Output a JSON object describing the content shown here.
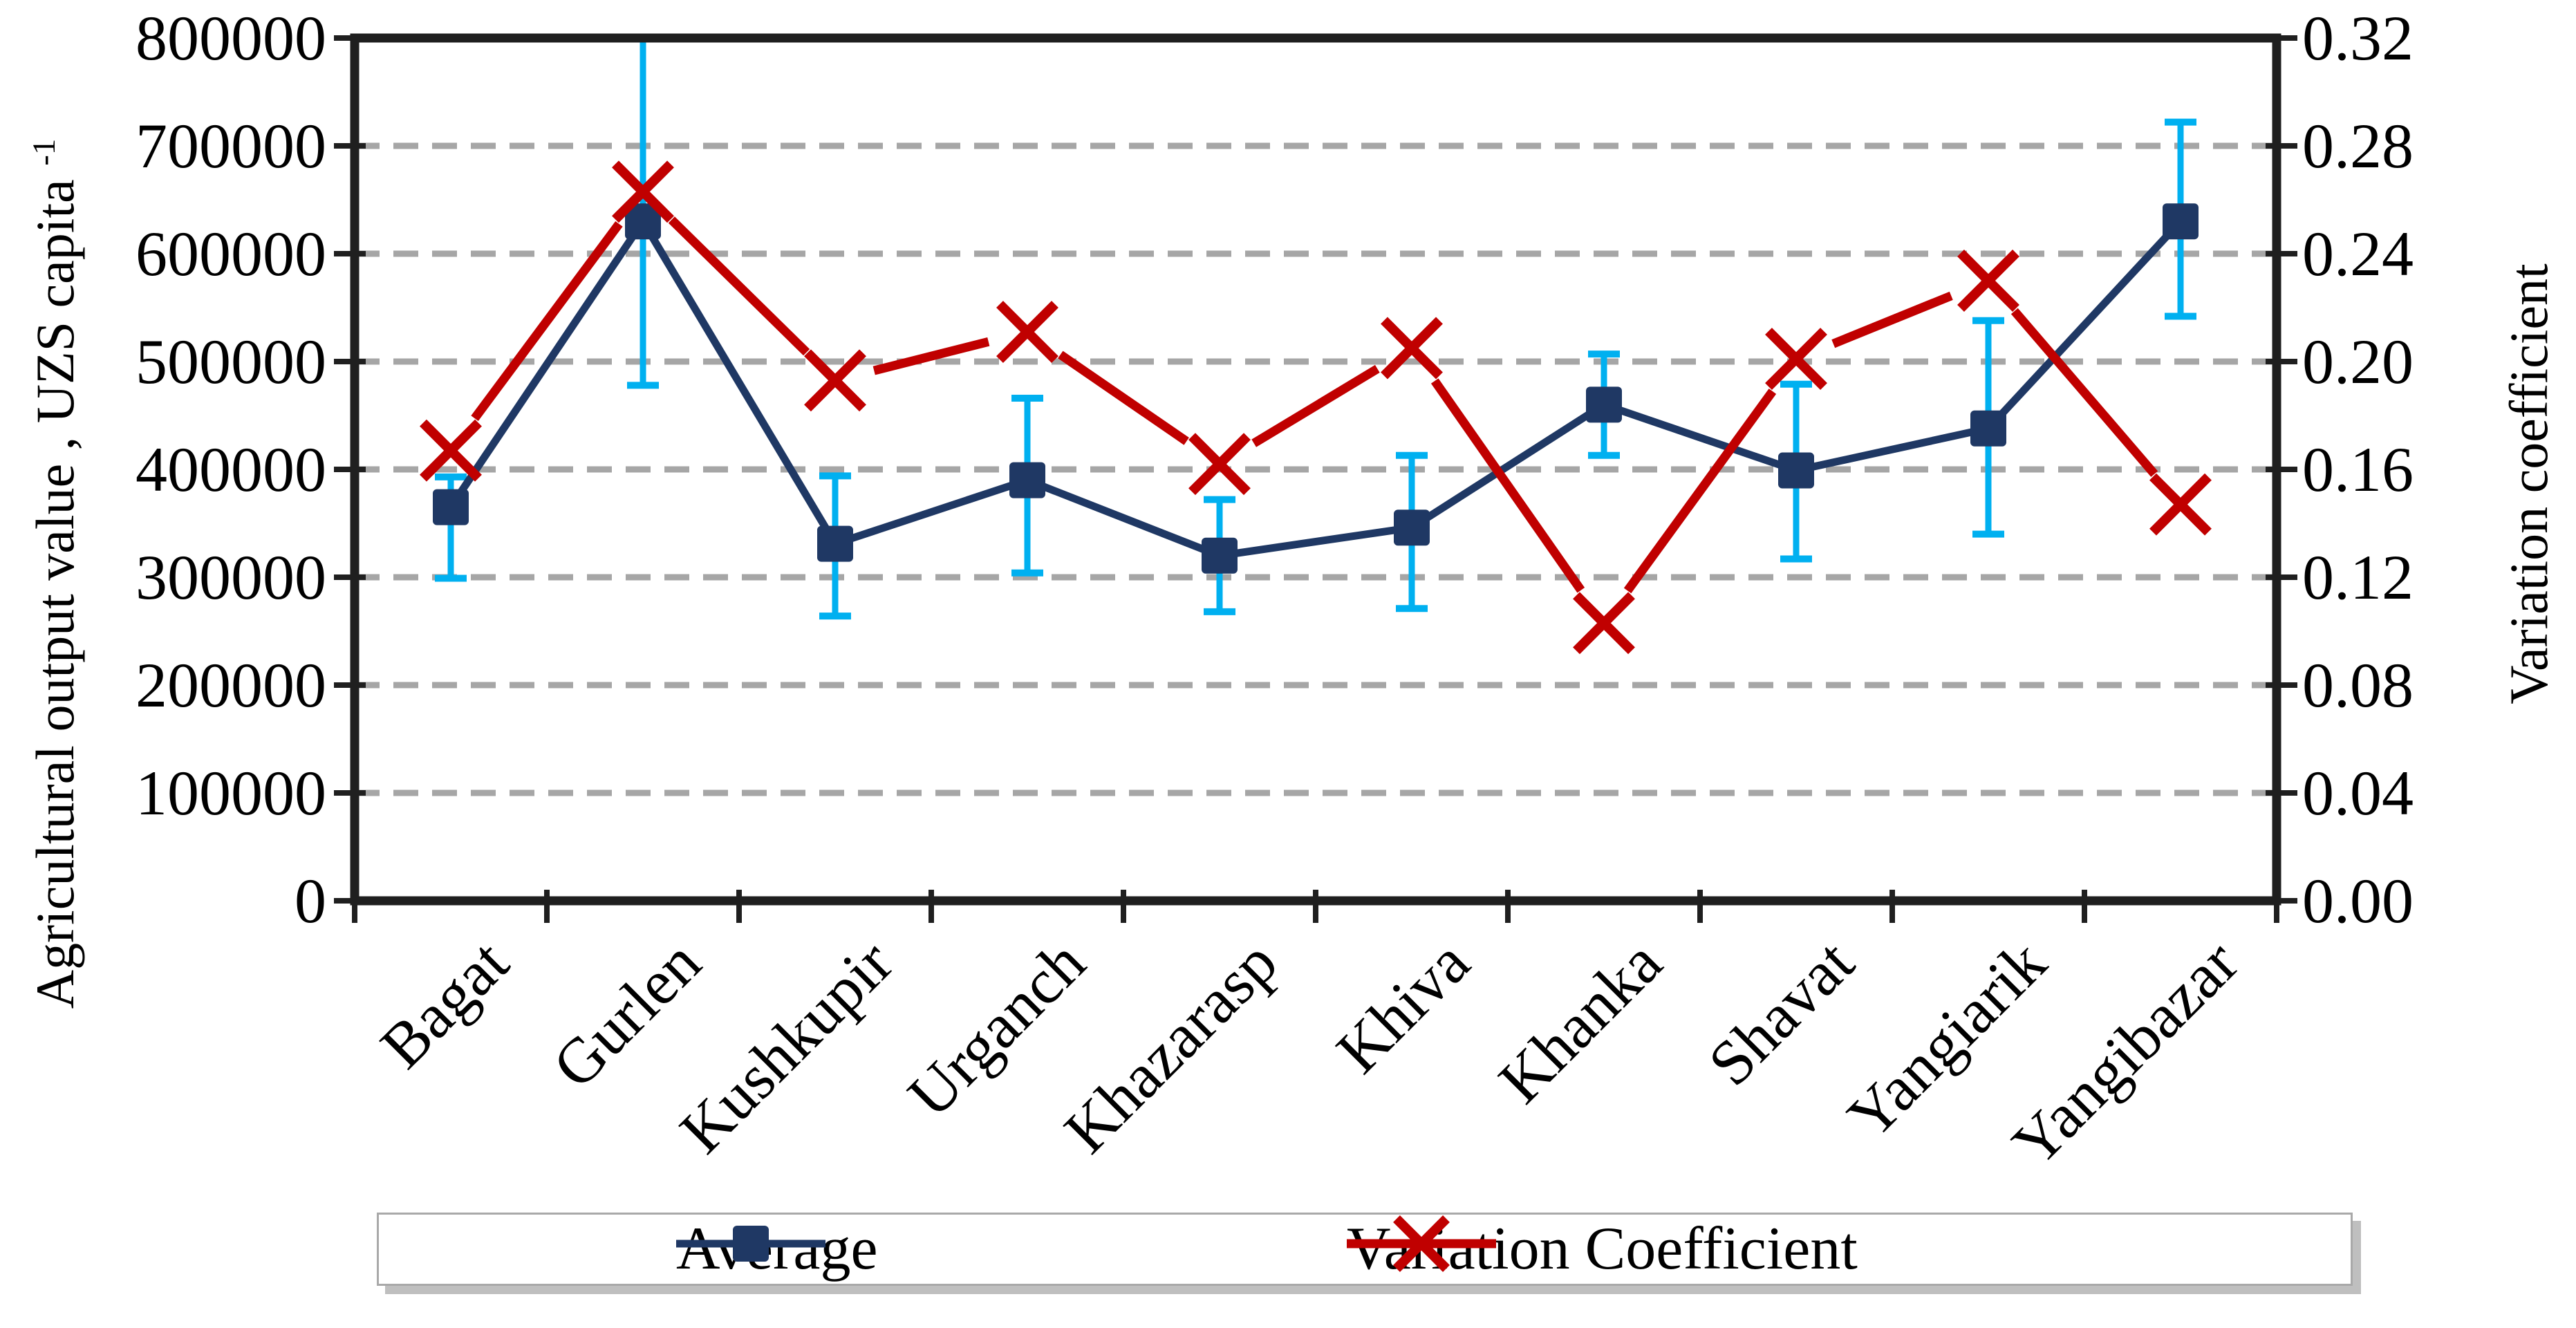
{
  "page": {
    "background": "#FFFFFF"
  },
  "legend": {
    "items": [
      {
        "label": "Average"
      },
      {
        "label": "Variation Coefficient"
      }
    ]
  },
  "chart_data": {
    "type": "line",
    "categories": [
      "Bagat",
      "Gurlen",
      "Kushkupir",
      "Urganch",
      "Khazarasp",
      "Khiva",
      "Khanka",
      "Shavat",
      "Yangiarik",
      "Yangibazar"
    ],
    "series": [
      {
        "name": "Average",
        "axis": "left",
        "marker": "square",
        "color": "#1F3864",
        "values": [
          365000,
          630000,
          331000,
          390000,
          320000,
          346000,
          460000,
          399000,
          438000,
          630000
        ],
        "error_low": [
          299000,
          478000,
          264000,
          304000,
          268000,
          271000,
          413000,
          317000,
          340000,
          542000
        ],
        "error_high": [
          393000,
          800000,
          394000,
          466000,
          372000,
          413000,
          507000,
          479000,
          538000,
          722000
        ]
      },
      {
        "name": "Variation Coefficient",
        "axis": "right",
        "marker": "x",
        "color": "#C00000",
        "values": [
          0.167,
          0.263,
          0.193,
          0.211,
          0.162,
          0.205,
          0.103,
          0.201,
          0.23,
          0.147
        ]
      }
    ],
    "left_axis": {
      "title": "Agricultural output value , UZS capita",
      "title_superscript": "-1",
      "min": 0,
      "max": 800000,
      "step": 100000,
      "tick_labels": [
        "0",
        "100000",
        "200000",
        "300000",
        "400000",
        "500000",
        "600000",
        "700000",
        "800000"
      ]
    },
    "right_axis": {
      "title": "Variation coefficient",
      "min": 0,
      "max": 0.32,
      "step": 0.04,
      "tick_labels": [
        "0.00",
        "0.04",
        "0.08",
        "0.12",
        "0.16",
        "0.20",
        "0.24",
        "0.28",
        "0.32"
      ]
    },
    "styles": {
      "error_bar_color": "#00B0F0",
      "grid_color": "#A6A6A6",
      "axis_color": "#1F1F1F",
      "legend_border_color": "#A9A9A9",
      "legend_shadow_color": "#BFBFBF"
    },
    "layout": {
      "grid": "horizontal-dashed",
      "legend_position": "bottom",
      "x_labels_rotation_deg": -45
    }
  }
}
